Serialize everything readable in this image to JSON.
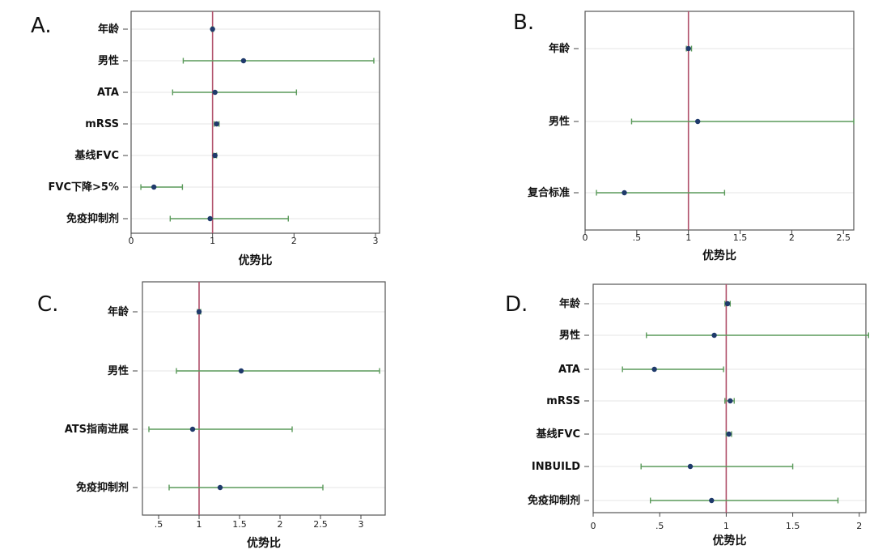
{
  "chart_data": [
    {
      "type": "forest",
      "panel": "A.",
      "xlabel": "优势比",
      "xlim": [
        0,
        3.05
      ],
      "xticks": [
        "0",
        "1",
        "2",
        "3"
      ],
      "xtick_values": [
        0,
        1,
        2,
        3
      ],
      "reference_line": 1,
      "rows": [
        {
          "label": "年龄",
          "estimate": 1.0,
          "lower": 0.99,
          "upper": 1.01
        },
        {
          "label": "男性",
          "estimate": 1.38,
          "lower": 0.64,
          "upper": 2.98
        },
        {
          "label": "ATA",
          "estimate": 1.03,
          "lower": 0.51,
          "upper": 2.03
        },
        {
          "label": "mRSS",
          "estimate": 1.05,
          "lower": 1.02,
          "upper": 1.08
        },
        {
          "label": "基线FVC",
          "estimate": 1.03,
          "lower": 1.01,
          "upper": 1.05
        },
        {
          "label": "FVC下降>5%",
          "estimate": 0.28,
          "lower": 0.12,
          "upper": 0.63
        },
        {
          "label": "免疫抑制剂",
          "estimate": 0.97,
          "lower": 0.48,
          "upper": 1.93
        }
      ]
    },
    {
      "type": "forest",
      "panel": "B.",
      "xlabel": "优势比",
      "xlim": [
        0,
        2.6
      ],
      "xticks": [
        "0",
        ".5",
        "1",
        "1.5",
        "2",
        "2.5"
      ],
      "xtick_values": [
        0,
        0.5,
        1,
        1.5,
        2,
        2.5
      ],
      "reference_line": 1,
      "rows": [
        {
          "label": "年龄",
          "estimate": 1.0,
          "lower": 0.98,
          "upper": 1.03
        },
        {
          "label": "男性",
          "estimate": 1.09,
          "lower": 0.45,
          "upper": 2.6
        },
        {
          "label": "复合标准",
          "estimate": 0.38,
          "lower": 0.11,
          "upper": 1.35
        }
      ]
    },
    {
      "type": "forest",
      "panel": "C.",
      "xlabel": "优势比",
      "xlim": [
        0.3,
        3.3
      ],
      "xticks": [
        ".5",
        "1",
        "1.5",
        "2",
        "2.5",
        "3"
      ],
      "xtick_values": [
        0.5,
        1,
        1.5,
        2,
        2.5,
        3
      ],
      "reference_line": 1,
      "rows": [
        {
          "label": "年龄",
          "estimate": 1.0,
          "lower": 0.98,
          "upper": 1.02
        },
        {
          "label": "男性",
          "estimate": 1.52,
          "lower": 0.72,
          "upper": 3.23
        },
        {
          "label": "ATS指南进展",
          "estimate": 0.92,
          "lower": 0.38,
          "upper": 2.15
        },
        {
          "label": "免疫抑制剂",
          "estimate": 1.26,
          "lower": 0.63,
          "upper": 2.53
        }
      ]
    },
    {
      "type": "forest",
      "panel": "D.",
      "xlabel": "优势比",
      "xlim": [
        0,
        2.05
      ],
      "xticks": [
        "0",
        ".5",
        "1",
        "1.5",
        "2"
      ],
      "xtick_values": [
        0,
        0.5,
        1,
        1.5,
        2
      ],
      "reference_line": 1,
      "rows": [
        {
          "label": "年龄",
          "estimate": 1.01,
          "lower": 0.99,
          "upper": 1.03
        },
        {
          "label": "男性",
          "estimate": 0.91,
          "lower": 0.4,
          "upper": 2.07
        },
        {
          "label": "ATA",
          "estimate": 0.46,
          "lower": 0.22,
          "upper": 0.98
        },
        {
          "label": "mRSS",
          "estimate": 1.03,
          "lower": 0.99,
          "upper": 1.06
        },
        {
          "label": "基线FVC",
          "estimate": 1.02,
          "lower": 1.0,
          "upper": 1.04
        },
        {
          "label": "INBUILD",
          "estimate": 0.73,
          "lower": 0.36,
          "upper": 1.5
        },
        {
          "label": "免疫抑制剂",
          "estimate": 0.89,
          "lower": 0.43,
          "upper": 1.84
        }
      ]
    }
  ],
  "colors": {
    "ci_line": "#5a9a5a",
    "point": "#1f3a6b",
    "reference_line": "#b0506a",
    "frame": "#555555",
    "grid": "#e6e6e6"
  }
}
